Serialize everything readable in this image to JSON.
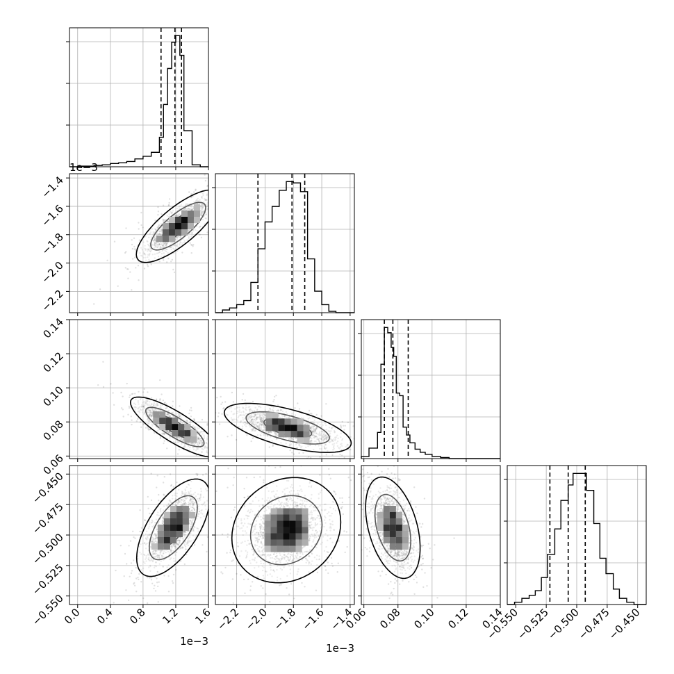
{
  "chart_data": {
    "type": "corner",
    "dim": 4,
    "params": [
      {
        "index": 0,
        "range": [
          -0.1,
          1.6
        ],
        "ticks": [
          0.0,
          0.4,
          0.8,
          1.2,
          1.6
        ],
        "tick_labels": [
          "0.0",
          "0.4",
          "0.8",
          "1.2",
          "1.6"
        ],
        "offset_label": "1e−3",
        "quantiles": [
          1.02,
          1.19,
          1.27
        ]
      },
      {
        "index": 1,
        "range": [
          -2.35,
          -1.37
        ],
        "ticks": [
          -2.2,
          -2.0,
          -1.8,
          -1.6,
          -1.4
        ],
        "tick_labels": [
          "−2.2",
          "−2.0",
          "−1.8",
          "−1.6",
          "−1.4"
        ],
        "offset_label": "1e−3",
        "quantiles": [
          -2.05,
          -1.81,
          -1.72
        ]
      },
      {
        "index": 2,
        "range": [
          0.0585,
          0.14
        ],
        "ticks": [
          0.06,
          0.08,
          0.1,
          0.12,
          0.14
        ],
        "tick_labels": [
          "0.06",
          "0.08",
          "0.10",
          "0.12",
          "0.14"
        ],
        "offset_label": "",
        "quantiles": [
          0.072,
          0.077,
          0.086
        ]
      },
      {
        "index": 3,
        "range": [
          -0.557,
          -0.443
        ],
        "ticks": [
          -0.55,
          -0.525,
          -0.5,
          -0.475,
          -0.45
        ],
        "tick_labels": [
          "−0.550",
          "−0.525",
          "−0.500",
          "−0.475",
          "−0.450"
        ],
        "offset_label": "",
        "quantiles": [
          -0.522,
          -0.507,
          -0.493
        ]
      }
    ],
    "histograms": [
      {
        "param": 0,
        "bin_edges": [
          -0.1,
          0.0,
          0.1,
          0.2,
          0.3,
          0.4,
          0.5,
          0.6,
          0.7,
          0.8,
          0.9,
          1.0,
          1.05,
          1.1,
          1.15,
          1.2,
          1.25,
          1.3,
          1.4,
          1.5,
          1.6
        ],
        "counts": [
          0,
          1,
          1,
          2,
          3,
          5,
          6,
          8,
          12,
          16,
          22,
          45,
          95,
          150,
          190,
          200,
          170,
          55,
          3,
          0
        ]
      },
      {
        "param": 1,
        "bin_edges": [
          -2.35,
          -2.3,
          -2.25,
          -2.2,
          -2.15,
          -2.1,
          -2.05,
          -2.0,
          -1.95,
          -1.9,
          -1.85,
          -1.8,
          -1.75,
          -1.7,
          -1.65,
          -1.6,
          -1.55,
          -1.5,
          -1.45,
          -1.4,
          -1.37
        ],
        "counts": [
          0,
          4,
          7,
          12,
          18,
          45,
          95,
          135,
          158,
          182,
          195,
          193,
          180,
          80,
          32,
          12,
          2,
          0,
          0,
          0
        ]
      },
      {
        "param": 2,
        "bin_edges": [
          0.0585,
          0.063,
          0.068,
          0.07,
          0.072,
          0.074,
          0.076,
          0.0775,
          0.079,
          0.081,
          0.083,
          0.085,
          0.087,
          0.09,
          0.093,
          0.096,
          0.1,
          0.105,
          0.11,
          0.12,
          0.14
        ],
        "counts": [
          4,
          20,
          50,
          180,
          250,
          240,
          212,
          195,
          125,
          120,
          60,
          45,
          30,
          18,
          12,
          8,
          4,
          2,
          0,
          0
        ]
      },
      {
        "param": 3,
        "bin_edges": [
          -0.557,
          -0.551,
          -0.545,
          -0.539,
          -0.534,
          -0.529,
          -0.524,
          -0.518,
          -0.513,
          -0.507,
          -0.503,
          -0.497,
          -0.492,
          -0.486,
          -0.481,
          -0.476,
          -0.47,
          -0.465,
          -0.459,
          -0.453,
          -0.443
        ],
        "counts": [
          0,
          3,
          8,
          12,
          18,
          35,
          65,
          98,
          135,
          155,
          170,
          170,
          148,
          105,
          60,
          40,
          20,
          8,
          3,
          0
        ]
      }
    ],
    "pairs": [
      {
        "x": 0,
        "y": 1,
        "center": [
          1.23,
          -1.74
        ],
        "sd": [
          0.16,
          0.08
        ],
        "corr": 0.78,
        "contour_scales": [
          1.2,
          2.1,
          3.2
        ]
      },
      {
        "x": 0,
        "y": 2,
        "center": [
          1.19,
          0.077
        ],
        "sd": [
          0.17,
          0.0055
        ],
        "corr": -0.82,
        "contour_scales": [
          1.2,
          2.1,
          3.2
        ]
      },
      {
        "x": 0,
        "y": 3,
        "center": [
          1.17,
          -0.494
        ],
        "sd": [
          0.14,
          0.0125
        ],
        "corr": 0.62,
        "contour_scales": [
          1.2,
          2.1,
          3.2
        ]
      },
      {
        "x": 1,
        "y": 2,
        "center": [
          -1.84,
          0.0765
        ],
        "sd": [
          0.14,
          0.0045
        ],
        "corr": -0.62,
        "contour_scales": [
          1.2,
          2.1,
          3.2
        ]
      },
      {
        "x": 1,
        "y": 3,
        "center": [
          -1.85,
          -0.496
        ],
        "sd": [
          0.12,
          0.0135
        ],
        "corr": 0.15,
        "contour_scales": [
          1.2,
          2.1,
          3.2
        ]
      },
      {
        "x": 2,
        "y": 3,
        "center": [
          0.077,
          -0.494
        ],
        "sd": [
          0.005,
          0.013
        ],
        "corr": -0.4,
        "contour_scales": [
          1.2,
          2.1,
          3.2
        ]
      }
    ],
    "grid": true,
    "title": "",
    "legend": "none"
  }
}
